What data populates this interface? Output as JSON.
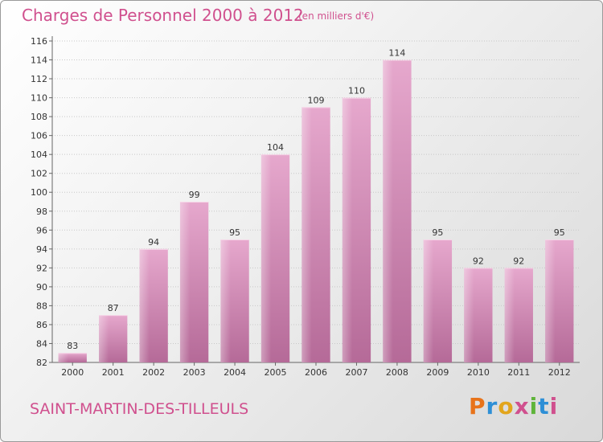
{
  "header": {
    "title": "Charges de Personnel 2000 à 2012",
    "subtitle": "(en milliers d'€)"
  },
  "footer": {
    "commune": "SAINT-MARTIN-DES-TILLEULS",
    "brand": "Proxiti",
    "brand_colors": [
      "#e8731a",
      "#2e8fd6",
      "#e2a51c",
      "#d0508e",
      "#5fb43a",
      "#2e8fd6",
      "#d0508e"
    ]
  },
  "colors": {
    "bar_top": "#e6a8cd",
    "bar_bottom": "#b56a98",
    "accent": "#d0508e"
  },
  "chart_data": {
    "type": "bar",
    "title": "Charges de Personnel 2000 à 2012",
    "subtitle": "(en milliers d'€)",
    "categories": [
      "2000",
      "2001",
      "2002",
      "2003",
      "2004",
      "2005",
      "2006",
      "2007",
      "2008",
      "2009",
      "2010",
      "2011",
      "2012"
    ],
    "values": [
      83,
      87,
      94,
      99,
      95,
      104,
      109,
      110,
      114,
      95,
      92,
      92,
      95
    ],
    "ylim": [
      82,
      116
    ],
    "yticks": [
      82,
      84,
      86,
      88,
      90,
      92,
      94,
      96,
      98,
      100,
      102,
      104,
      106,
      108,
      110,
      112,
      114,
      116
    ],
    "xlabel": "",
    "ylabel": "",
    "grid": true,
    "data_labels": true
  }
}
